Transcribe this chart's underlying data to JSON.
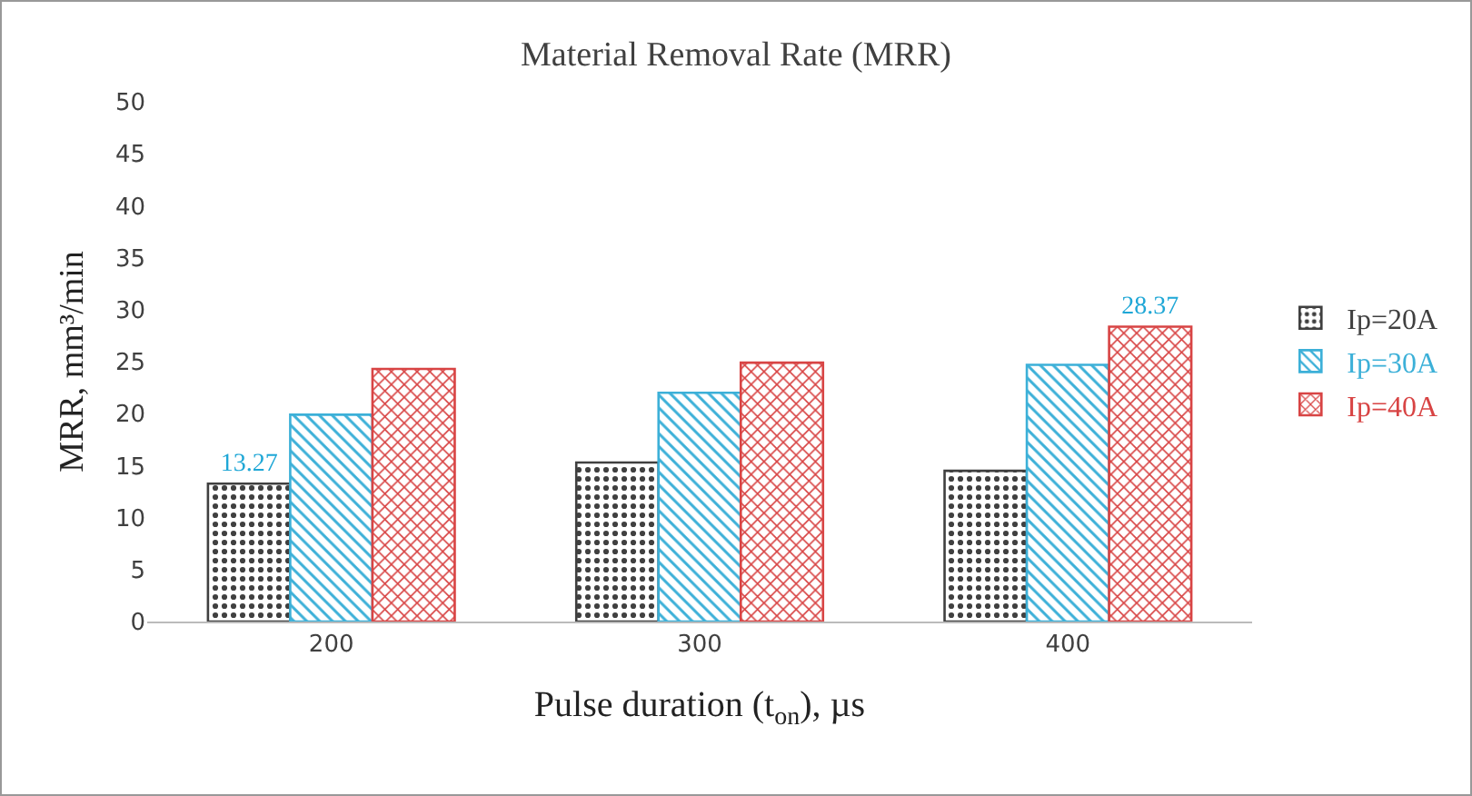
{
  "chart_data": {
    "type": "bar",
    "title": "Material Removal Rate (MRR)",
    "xlabel": "Pulse duration (t$_{on}$), µs",
    "ylabel": "MRR, mm³/min",
    "categories": [
      "200",
      "300",
      "400"
    ],
    "series": [
      {
        "name": "Ip=20A",
        "color": "#404040",
        "values": [
          13.27,
          15.3,
          14.5
        ],
        "value_labels": [
          "13.27",
          null,
          null
        ]
      },
      {
        "name": "Ip=30A",
        "color": "#3cb0d8",
        "values": [
          19.9,
          22.0,
          24.7
        ],
        "value_labels": [
          null,
          null,
          null
        ]
      },
      {
        "name": "Ip=40A",
        "color": "#d84444",
        "values": [
          24.3,
          24.9,
          28.37
        ],
        "value_labels": [
          null,
          null,
          "28.37"
        ]
      }
    ],
    "ylim": [
      0,
      50
    ],
    "yticks": [
      0,
      5,
      10,
      15,
      20,
      25,
      30,
      35,
      40,
      45,
      50
    ],
    "grid": false,
    "legend": "right"
  }
}
